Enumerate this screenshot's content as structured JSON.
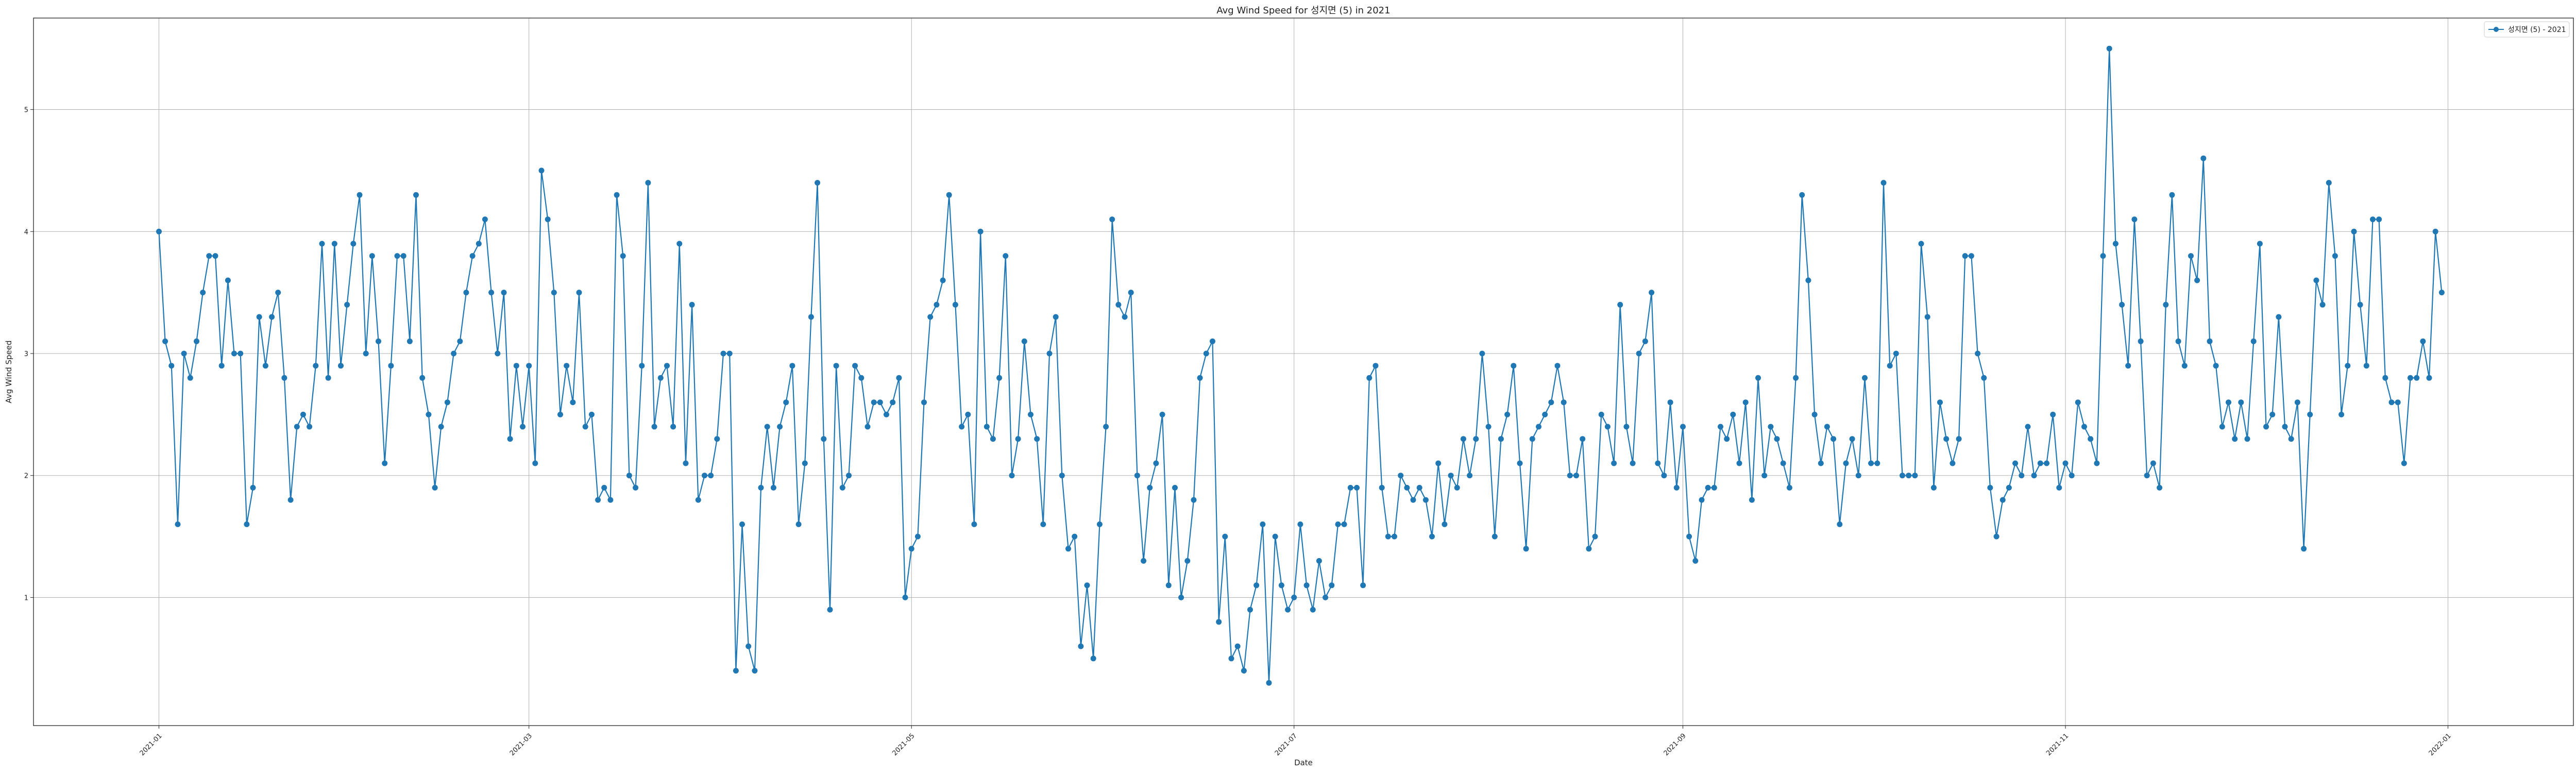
{
  "chart_data": {
    "type": "line",
    "title": "Avg Wind Speed for 성지면 (5) in 2021",
    "xlabel": "Date",
    "ylabel": "Avg Wind Speed",
    "x_start": "2021-01-01",
    "xlim": [
      "2020-12-12",
      "2022-01-21"
    ],
    "ylim": [
      -0.05,
      5.75
    ],
    "x_ticks": [
      "2021-01",
      "2021-03",
      "2021-05",
      "2021-07",
      "2021-09",
      "2021-11",
      "2022-01"
    ],
    "y_ticks": [
      1,
      2,
      3,
      4,
      5
    ],
    "grid": true,
    "legend_position": "top-right",
    "color": "#1f77b4",
    "series": [
      {
        "name": "성지면 (5) - 2021",
        "values": [
          4.0,
          3.1,
          2.9,
          1.6,
          3.0,
          2.8,
          3.1,
          3.5,
          3.8,
          3.8,
          2.9,
          3.6,
          3.0,
          3.0,
          1.6,
          1.9,
          3.3,
          2.9,
          3.3,
          3.5,
          2.8,
          1.8,
          2.4,
          2.5,
          2.4,
          2.9,
          3.9,
          2.8,
          3.9,
          2.9,
          3.4,
          3.9,
          4.3,
          3.0,
          3.8,
          3.1,
          2.1,
          2.9,
          3.8,
          3.8,
          3.1,
          4.3,
          2.8,
          2.5,
          1.9,
          2.4,
          2.6,
          3.0,
          3.1,
          3.5,
          3.8,
          3.9,
          4.1,
          3.5,
          3.0,
          3.5,
          2.3,
          2.9,
          2.4,
          2.9,
          2.1,
          4.5,
          4.1,
          3.5,
          2.5,
          2.9,
          2.6,
          3.5,
          2.4,
          2.5,
          1.8,
          1.9,
          1.8,
          4.3,
          3.8,
          2.0,
          1.9,
          2.9,
          4.4,
          2.4,
          2.8,
          2.9,
          2.4,
          3.9,
          2.1,
          3.4,
          1.8,
          2.0,
          2.0,
          2.3,
          3.0,
          3.0,
          0.4,
          1.6,
          0.6,
          0.4,
          1.9,
          2.4,
          1.9,
          2.4,
          2.6,
          2.9,
          1.6,
          2.1,
          3.3,
          4.4,
          2.3,
          0.9,
          2.9,
          1.9,
          2.0,
          2.9,
          2.8,
          2.4,
          2.6,
          2.6,
          2.5,
          2.6,
          2.8,
          1.0,
          1.4,
          1.5,
          2.6,
          3.3,
          3.4,
          3.6,
          4.3,
          3.4,
          2.4,
          2.5,
          1.6,
          4.0,
          2.4,
          2.3,
          2.8,
          3.8,
          2.0,
          2.3,
          3.1,
          2.5,
          2.3,
          1.6,
          3.0,
          3.3,
          2.0,
          1.4,
          1.5,
          0.6,
          1.1,
          0.5,
          1.6,
          2.4,
          4.1,
          3.4,
          3.3,
          3.5,
          2.0,
          1.3,
          1.9,
          2.1,
          2.5,
          1.1,
          1.9,
          1.0,
          1.3,
          1.8,
          2.8,
          3.0,
          3.1,
          0.8,
          1.5,
          0.5,
          0.6,
          0.4,
          0.9,
          1.1,
          1.6,
          0.3,
          1.5,
          1.1,
          0.9,
          1.0,
          1.6,
          1.1,
          0.9,
          1.3,
          1.0,
          1.1,
          1.6,
          1.6,
          1.9,
          1.9,
          1.1,
          2.8,
          2.9,
          1.9,
          1.5,
          1.5,
          2.0,
          1.9,
          1.8,
          1.9,
          1.8,
          1.5,
          2.1,
          1.6,
          2.0,
          1.9,
          2.3,
          2.0,
          2.3,
          3.0,
          2.4,
          1.5,
          2.3,
          2.5,
          2.9,
          2.1,
          1.4,
          2.3,
          2.4,
          2.5,
          2.6,
          2.9,
          2.6,
          2.0,
          2.0,
          2.3,
          1.4,
          1.5,
          2.5,
          2.4,
          2.1,
          3.4,
          2.4,
          2.1,
          3.0,
          3.1,
          3.5,
          2.1,
          2.0,
          2.6,
          1.9,
          2.4,
          1.5,
          1.3,
          1.8,
          1.9,
          1.9,
          2.4,
          2.3,
          2.5,
          2.1,
          2.6,
          1.8,
          2.8,
          2.0,
          2.4,
          2.3,
          2.1,
          1.9,
          2.8,
          4.3,
          3.6,
          2.5,
          2.1,
          2.4,
          2.3,
          1.6,
          2.1,
          2.3,
          2.0,
          2.8,
          2.1,
          2.1,
          4.4,
          2.9,
          3.0,
          2.0,
          2.0,
          2.0,
          3.9,
          3.3,
          1.9,
          2.6,
          2.3,
          2.1,
          2.3,
          3.8,
          3.8,
          3.0,
          2.8,
          1.9,
          1.5,
          1.8,
          1.9,
          2.1,
          2.0,
          2.4,
          2.0,
          2.1,
          2.1,
          2.5,
          1.9,
          2.1,
          2.0,
          2.6,
          2.4,
          2.3,
          2.1,
          3.8,
          5.5,
          3.9,
          3.4,
          2.9,
          4.1,
          3.1,
          2.0,
          2.1,
          1.9,
          3.4,
          4.3,
          3.1,
          2.9,
          3.8,
          3.6,
          4.6,
          3.1,
          2.9,
          2.4,
          2.6,
          2.3,
          2.6,
          2.3,
          3.1,
          3.9,
          2.4,
          2.5,
          3.3,
          2.4,
          2.3,
          2.6,
          1.4,
          2.5,
          3.6,
          3.4,
          4.4,
          3.8,
          2.5,
          2.9,
          4.0,
          3.4,
          2.9,
          4.1,
          4.1,
          2.8,
          2.6,
          2.6,
          2.1,
          2.8,
          2.8,
          3.1,
          2.8,
          4.0,
          3.5
        ]
      }
    ]
  }
}
